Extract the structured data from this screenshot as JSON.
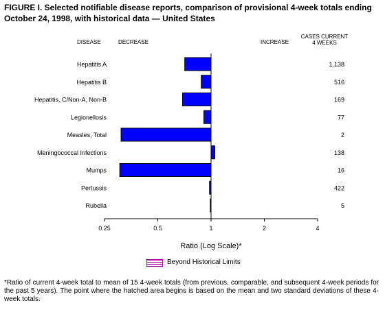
{
  "title": "FIGURE I. Selected notifiable disease reports, comparison of provisional 4-week totals ending October 24, 1998, with historical data — United States",
  "chart_data": {
    "type": "bar",
    "orientation": "horizontal",
    "scale": "log",
    "headers": {
      "disease": "DISEASE",
      "decrease": "DECREASE",
      "increase": "INCREASE",
      "cases_line1": "CASES CURRENT",
      "cases_line2": "4 WEEKS"
    },
    "categories": [
      "Hepatitis A",
      "Hepatitis B",
      "Hepatitis, C/Non-A, Non-B",
      "Legionellosis",
      "Measles, Total",
      "Meningococcal Infections",
      "Mumps",
      "Pertussis",
      "Rubella"
    ],
    "values": [
      0.71,
      0.88,
      0.69,
      0.91,
      0.31,
      1.05,
      0.305,
      0.98,
      0.99
    ],
    "cases": [
      "1,138",
      "516",
      "169",
      "77",
      "2",
      "138",
      "16",
      "422",
      "5"
    ],
    "xticks": [
      0.25,
      0.5,
      1,
      2,
      4
    ],
    "xtick_labels": [
      "0.25",
      "0.5",
      "1",
      "2",
      "4"
    ],
    "xlim": [
      0.25,
      4
    ],
    "baseline": 1,
    "xlabel": "Ratio (Log Scale)*",
    "legend": [
      "Beyond Historical Limits"
    ],
    "bar_color": "#0000ff",
    "hatch_color": "#b000b0"
  },
  "footnote": "*Ratio of current 4-week total to mean of 15 4-week totals (from previous, comparable, and subsequent 4-week periods for the past 5 years). The point where the hatched area begins is based on the mean and two standard deviations of these 4-week totals."
}
